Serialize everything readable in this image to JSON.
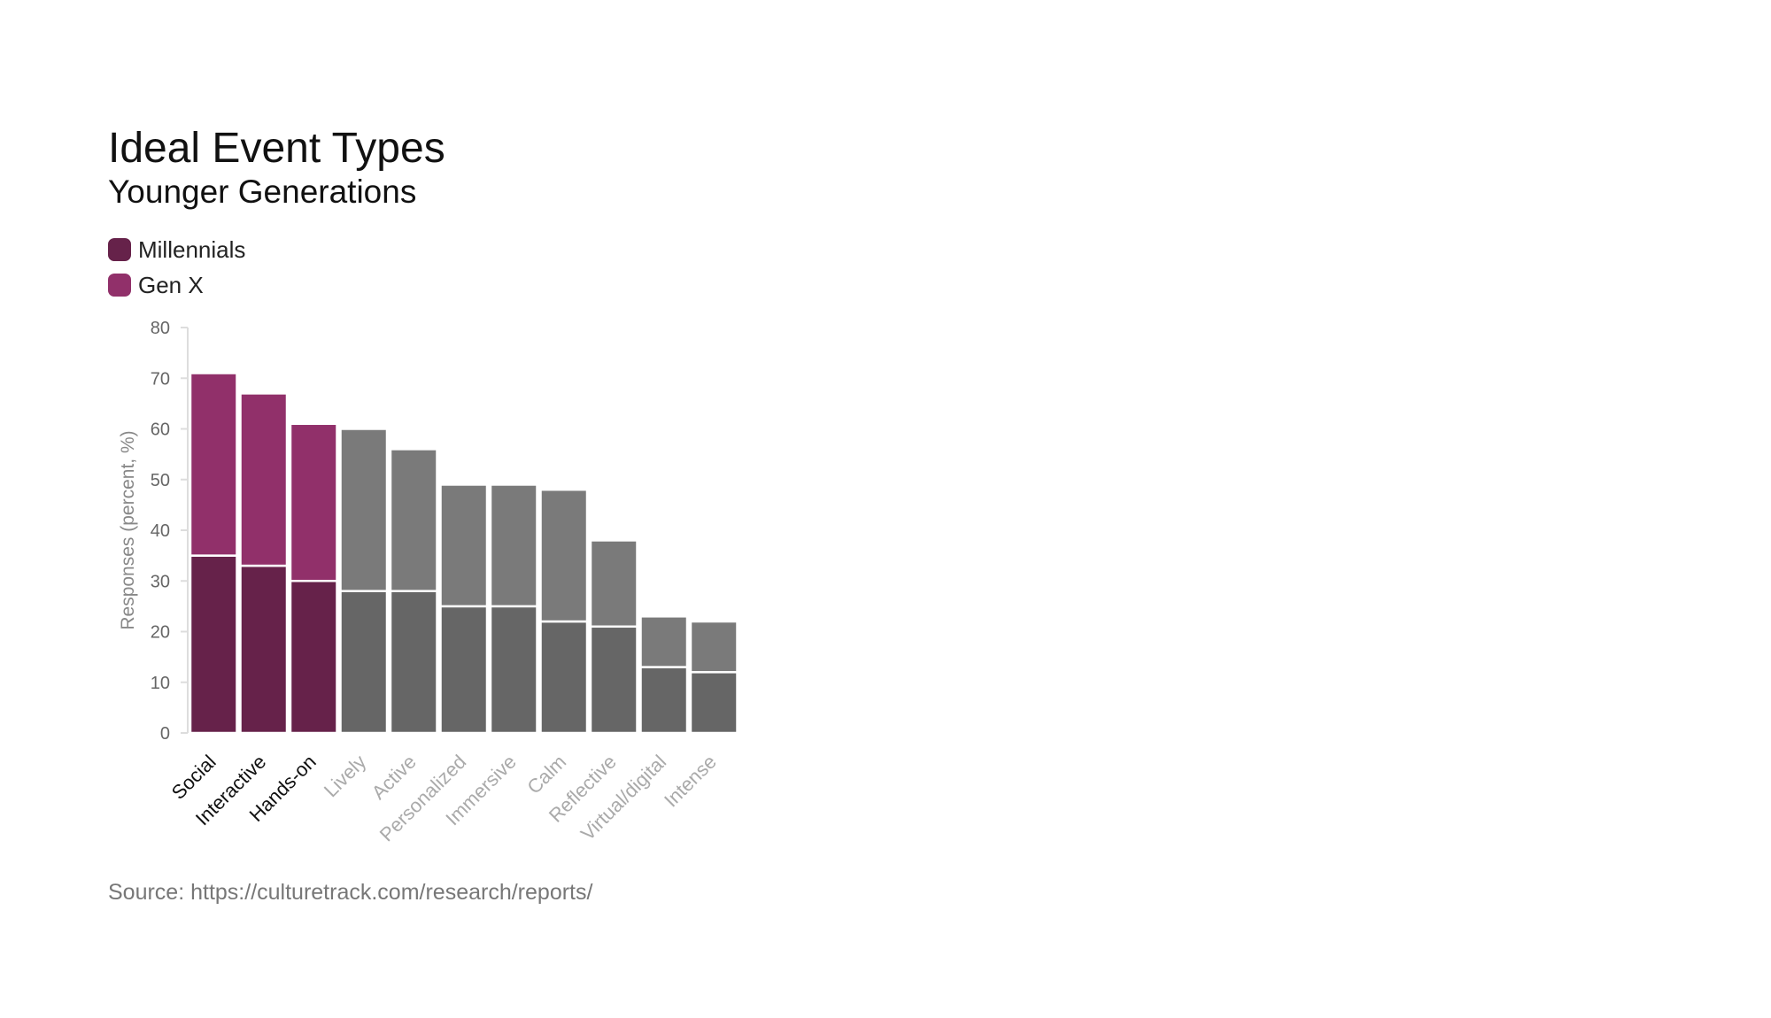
{
  "chart_data": {
    "type": "bar",
    "stacked": true,
    "title": "Ideal Event Types",
    "subtitle": "Younger Generations",
    "ylabel": "Responses (percent, %)",
    "xlabel": "",
    "ylim": [
      0,
      80
    ],
    "yticks": [
      0,
      10,
      20,
      30,
      40,
      50,
      60,
      70,
      80
    ],
    "categories": [
      "Social",
      "Interactive",
      "Hands-on",
      "Lively",
      "Active",
      "Personalized",
      "Immersive",
      "Calm",
      "Reflective",
      "Virtual/digital",
      "Intense"
    ],
    "highlighted_categories": [
      "Social",
      "Interactive",
      "Hands-on"
    ],
    "series": [
      {
        "name": "Millennials",
        "values": [
          35,
          33,
          30,
          28,
          28,
          25,
          25,
          22,
          21,
          13,
          12
        ],
        "color": "#66224a",
        "muted_color": "#666666"
      },
      {
        "name": "Gen X",
        "values": [
          36,
          34,
          31,
          32,
          28,
          24,
          24,
          26,
          17,
          10,
          10
        ],
        "color": "#91306a",
        "muted_color": "#7a7a7a"
      }
    ],
    "legend": "top-left",
    "grid": false,
    "source": "Source: https://culturetrack.com/research/reports/"
  }
}
